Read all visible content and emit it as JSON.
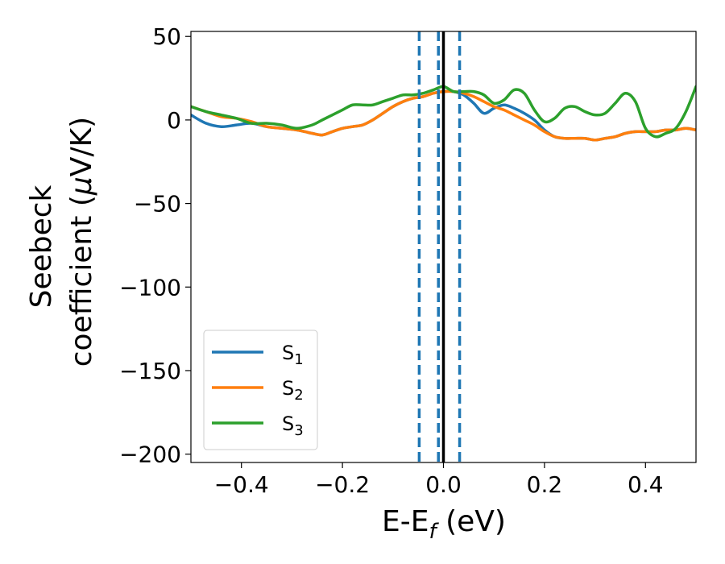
{
  "chart_data": {
    "type": "line",
    "xlabel": "E-E",
    "xlabel_subscript": "f",
    "xlabel_unit": " (eV)",
    "ylabel_line1": "Seebeck",
    "ylabel_line2": "coefficient  (",
    "ylabel_mu": "μ",
    "ylabel_unit": "V/K)",
    "xlim": [
      -0.5,
      0.5
    ],
    "ylim": [
      -205,
      53
    ],
    "xticks": [
      -0.4,
      -0.2,
      0.0,
      0.2,
      0.4
    ],
    "xtick_labels": [
      "−0.4",
      "−0.2",
      "0.0",
      "0.2",
      "0.4"
    ],
    "yticks": [
      50,
      0,
      -50,
      -100,
      -150,
      -200
    ],
    "ytick_labels": [
      "50",
      "0",
      "−50",
      "−100",
      "−150",
      "−200"
    ],
    "vlines": [
      {
        "x": 0.0,
        "color": "#000000",
        "style": "solid"
      },
      {
        "x": -0.048,
        "color": "#1f77b4",
        "style": "dashed"
      },
      {
        "x": -0.01,
        "color": "#1f77b4",
        "style": "dashed"
      },
      {
        "x": 0.032,
        "color": "#1f77b4",
        "style": "dashed"
      }
    ],
    "legend_position": "lower-left",
    "series": [
      {
        "name": "S",
        "subscript": "1",
        "color": "#1f77b4",
        "x": [
          -0.5,
          -0.47,
          -0.44,
          -0.41,
          -0.38,
          -0.35,
          -0.32,
          -0.29,
          -0.26,
          -0.24,
          -0.22,
          -0.2,
          -0.18,
          -0.16,
          -0.14,
          -0.12,
          -0.1,
          -0.08,
          -0.06,
          -0.04,
          -0.02,
          0.0,
          0.02,
          0.04,
          0.06,
          0.08,
          0.1,
          0.12,
          0.14,
          0.16,
          0.18,
          0.2,
          0.22,
          0.24,
          0.26,
          0.28,
          0.3,
          0.32,
          0.34,
          0.36,
          0.38,
          0.4,
          0.42,
          0.44,
          0.46,
          0.48,
          0.5
        ],
        "y": [
          3,
          -2,
          -4,
          -3,
          -2,
          -4,
          -5,
          -6,
          -8,
          -9,
          -7,
          -5,
          -4,
          -3,
          0,
          4,
          8,
          11,
          13,
          14,
          16,
          17,
          17,
          15,
          10,
          4,
          7,
          9,
          7,
          4,
          0,
          -6,
          -10,
          -11,
          -11,
          -11,
          -12,
          -11,
          -10,
          -8,
          -7,
          -7,
          -7,
          -6,
          -6,
          -5,
          -6
        ]
      },
      {
        "name": "S",
        "subscript": "2",
        "color": "#ff7f0e",
        "x": [
          -0.5,
          -0.47,
          -0.44,
          -0.41,
          -0.38,
          -0.35,
          -0.32,
          -0.29,
          -0.26,
          -0.24,
          -0.22,
          -0.2,
          -0.18,
          -0.16,
          -0.14,
          -0.12,
          -0.1,
          -0.08,
          -0.06,
          -0.04,
          -0.02,
          0.0,
          0.02,
          0.04,
          0.06,
          0.08,
          0.1,
          0.12,
          0.14,
          0.16,
          0.18,
          0.2,
          0.22,
          0.24,
          0.26,
          0.28,
          0.3,
          0.32,
          0.34,
          0.36,
          0.38,
          0.4,
          0.42,
          0.44,
          0.46,
          0.48,
          0.5
        ],
        "y": [
          8,
          5,
          2,
          1,
          -1,
          -4,
          -5,
          -6,
          -8,
          -9,
          -7,
          -5,
          -4,
          -3,
          0,
          4,
          8,
          11,
          13,
          14,
          16,
          17,
          17,
          16,
          14,
          11,
          8,
          6,
          3,
          0,
          -3,
          -7,
          -10,
          -11,
          -11,
          -11,
          -12,
          -11,
          -10,
          -8,
          -7,
          -7,
          -7,
          -6,
          -6,
          -5,
          -6
        ]
      },
      {
        "name": "S",
        "subscript": "3",
        "color": "#2ca02c",
        "x": [
          -0.5,
          -0.47,
          -0.44,
          -0.41,
          -0.38,
          -0.35,
          -0.32,
          -0.29,
          -0.26,
          -0.24,
          -0.22,
          -0.2,
          -0.18,
          -0.16,
          -0.14,
          -0.12,
          -0.1,
          -0.08,
          -0.06,
          -0.04,
          -0.02,
          0.0,
          0.02,
          0.04,
          0.06,
          0.08,
          0.1,
          0.12,
          0.14,
          0.16,
          0.18,
          0.2,
          0.22,
          0.24,
          0.26,
          0.28,
          0.3,
          0.32,
          0.34,
          0.36,
          0.38,
          0.4,
          0.42,
          0.44,
          0.46,
          0.48,
          0.5
        ],
        "y": [
          8,
          5,
          3,
          1,
          -2,
          -2,
          -3,
          -5,
          -3,
          0,
          3,
          6,
          9,
          9,
          9,
          11,
          13,
          15,
          15,
          16,
          18,
          20,
          17,
          17,
          17,
          15,
          10,
          12,
          18,
          16,
          6,
          -1,
          1,
          7,
          8,
          5,
          3,
          4,
          10,
          16,
          11,
          -5,
          -10,
          -8,
          -5,
          5,
          20
        ]
      }
    ]
  }
}
